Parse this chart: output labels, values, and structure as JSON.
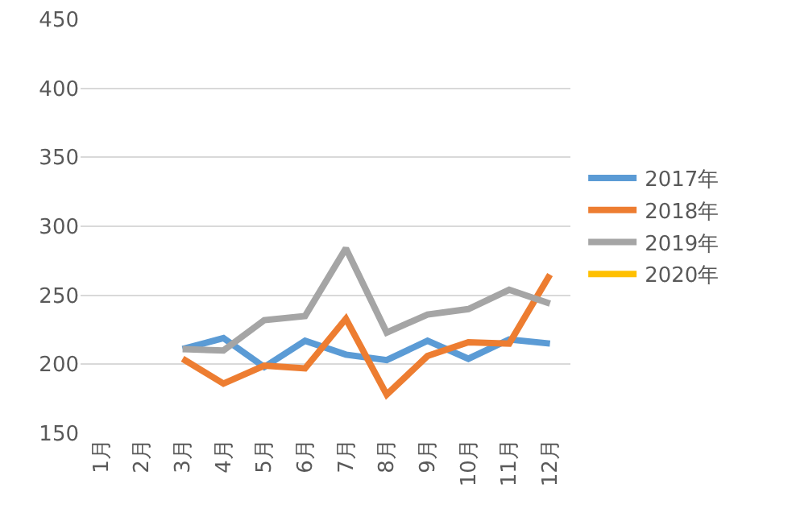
{
  "chart_data": {
    "type": "line",
    "categories": [
      "1月",
      "2月",
      "3月",
      "4月",
      "5月",
      "6月",
      "7月",
      "8月",
      "9月",
      "10月",
      "11月",
      "12月"
    ],
    "series": [
      {
        "name": "2017年",
        "color": "#5b9bd5",
        "values": [
          null,
          null,
          211,
          219,
          198,
          217,
          207,
          203,
          217,
          204,
          218,
          215
        ]
      },
      {
        "name": "2018年",
        "color": "#ed7d31",
        "values": [
          null,
          null,
          204,
          186,
          199,
          197,
          233,
          178,
          206,
          216,
          215,
          265
        ]
      },
      {
        "name": "2019年",
        "color": "#a5a5a5",
        "values": [
          null,
          null,
          211,
          210,
          232,
          235,
          284,
          223,
          236,
          240,
          254,
          244
        ]
      },
      {
        "name": "2020年",
        "color": "#ffc000",
        "values": [
          null,
          null,
          null,
          null,
          null,
          null,
          null,
          null,
          null,
          null,
          null,
          null
        ]
      }
    ],
    "ylim": [
      150,
      450
    ],
    "yticks": [
      150,
      200,
      250,
      300,
      350,
      400,
      450
    ],
    "grid": "y",
    "legend": "right",
    "marker": "none",
    "line_style": "solid"
  }
}
